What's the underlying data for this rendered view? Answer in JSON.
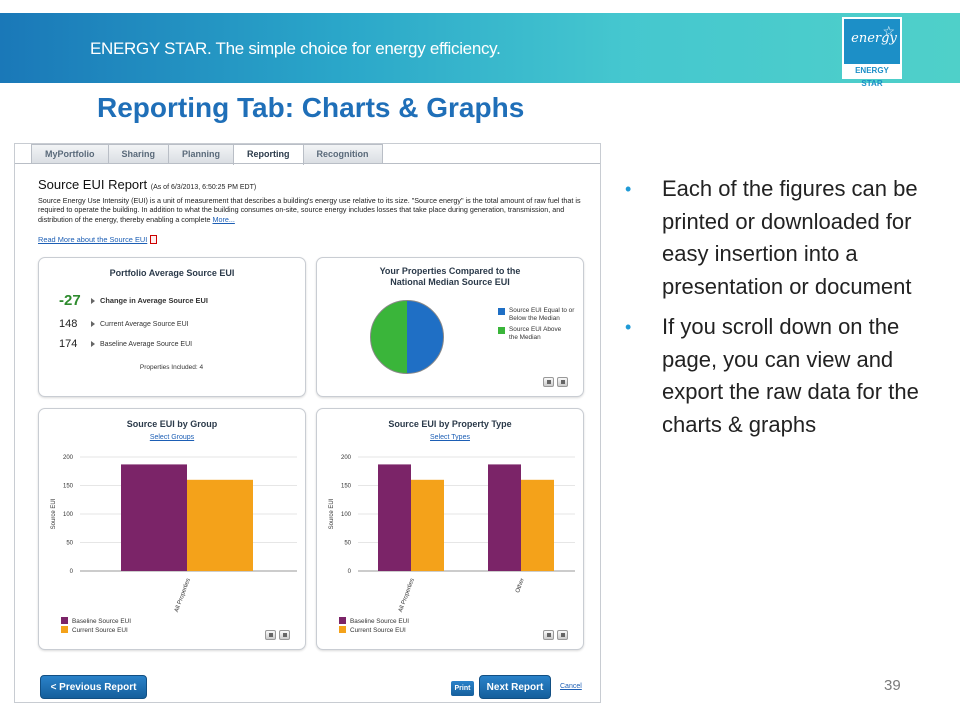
{
  "banner": {
    "text": "ENERGY STAR. The simple choice for energy efficiency.",
    "logo_script": "energy",
    "logo_label": "ENERGY STAR"
  },
  "slide": {
    "title": "Reporting Tab: Charts & Graphs",
    "bullets": [
      "Each of the figures can be printed or downloaded for easy insertion into a presentation or document",
      "If you scroll down on the page, you can view and export the raw data for the charts & graphs"
    ],
    "page_number": "39"
  },
  "tabs": [
    "MyPortfolio",
    "Sharing",
    "Planning",
    "Reporting",
    "Recognition"
  ],
  "active_tab": "Reporting",
  "report": {
    "title": "Source EUI Report",
    "as_of": "(As of 6/3/2013, 6:50:25 PM EDT)",
    "description": "Source Energy Use Intensity (EUI) is a unit of measurement that describes a building's energy use relative to its size. \"Source energy\" is the total amount of raw fuel that is required to operate the building. In addition to what the building consumes on-site, source energy includes losses that take place during generation, transmission, and distribution of the energy, thereby enabling a complete",
    "more_link": "More...",
    "read_more": "Read More about the Source EUI"
  },
  "portfolio_panel": {
    "title": "Portfolio Average Source EUI",
    "metrics": [
      {
        "value": "-27",
        "label": "Change in Average Source EUI"
      },
      {
        "value": "148",
        "label": "Current Average Source EUI"
      },
      {
        "value": "174",
        "label": "Baseline Average Source EUI"
      }
    ],
    "included": "Properties Included: 4"
  },
  "median_panel": {
    "title_line1": "Your Properties Compared to the",
    "title_line2": "National Median Source EUI",
    "legend": [
      {
        "label": "Source EUI Equal to or Below the Median",
        "color": "#1f6fc5"
      },
      {
        "label": "Source EUI Above the Median",
        "color": "#3ab53a"
      }
    ],
    "share_at_or_below": 0.5
  },
  "colors": {
    "baseline": "#7b2468",
    "current": "#f4a21a"
  },
  "chart_data": [
    {
      "type": "bar",
      "title": "Source EUI by Group",
      "link": "Select Groups",
      "categories": [
        "All Properties"
      ],
      "series": [
        {
          "name": "Baseline Source EUI",
          "values": [
            187
          ]
        },
        {
          "name": "Current Source EUI",
          "values": [
            160
          ]
        }
      ],
      "ylabel": "Source EUI",
      "yticks": [
        "200",
        "150",
        "100",
        "50",
        "0"
      ],
      "ylim": [
        0,
        200
      ]
    },
    {
      "type": "bar",
      "title": "Source EUI by Property Type",
      "link": "Select Types",
      "categories": [
        "All Properties",
        "Other"
      ],
      "series": [
        {
          "name": "Baseline Source EUI",
          "values": [
            187,
            187
          ]
        },
        {
          "name": "Current Source EUI",
          "values": [
            160,
            160
          ]
        }
      ],
      "ylabel": "Source EUI",
      "yticks": [
        "200",
        "150",
        "100",
        "50",
        "0"
      ],
      "ylim": [
        0,
        200
      ]
    }
  ],
  "buttons": {
    "prev": "< Previous Report",
    "print": "Print",
    "next": "Next Report",
    "cancel": "Cancel"
  }
}
